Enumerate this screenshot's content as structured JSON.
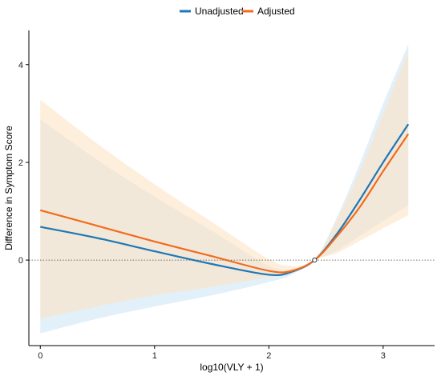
{
  "chart_data": {
    "type": "line",
    "title": "",
    "xlabel": "log10(VLY + 1)",
    "ylabel": "Difference in Symptom Score",
    "xlim": [
      -0.1,
      3.45
    ],
    "ylim": [
      -1.75,
      4.7
    ],
    "xticks": [
      0,
      1,
      2,
      3
    ],
    "yticks": [
      0,
      2,
      4
    ],
    "reference_line": {
      "y": 0,
      "style": "dotted"
    },
    "reference_point": {
      "x": 2.4,
      "y": 0
    },
    "legend": {
      "position": "top",
      "entries": [
        "Unadjusted",
        "Adjusted"
      ]
    },
    "series": [
      {
        "name": "Unadjusted",
        "color": "#1f77b4",
        "band_color": "#cfe6f6",
        "x": [
          0,
          0.5,
          1.0,
          1.5,
          2.0,
          2.2,
          2.4,
          2.6,
          2.8,
          3.0,
          3.22
        ],
        "y": [
          0.68,
          0.45,
          0.18,
          -0.08,
          -0.3,
          -0.24,
          0,
          0.55,
          1.25,
          2.0,
          2.78
        ],
        "lower": [
          -1.5,
          -1.2,
          -0.95,
          -0.72,
          -0.45,
          -0.3,
          0,
          0.2,
          0.5,
          0.8,
          1.12
        ],
        "upper": [
          2.88,
          2.05,
          1.3,
          0.6,
          -0.12,
          -0.18,
          0,
          0.9,
          2.0,
          3.2,
          4.42
        ]
      },
      {
        "name": "Adjusted",
        "color": "#f26b1d",
        "band_color": "#fde3c4",
        "x": [
          0,
          0.5,
          1.0,
          1.5,
          2.0,
          2.2,
          2.4,
          2.6,
          2.8,
          3.0,
          3.22
        ],
        "y": [
          1.02,
          0.7,
          0.38,
          0.08,
          -0.22,
          -0.22,
          0,
          0.5,
          1.1,
          1.82,
          2.58
        ],
        "lower": [
          -1.2,
          -0.95,
          -0.72,
          -0.55,
          -0.35,
          -0.28,
          0,
          0.15,
          0.4,
          0.65,
          0.92
        ],
        "upper": [
          3.28,
          2.38,
          1.55,
          0.78,
          0.02,
          -0.12,
          0,
          0.85,
          1.85,
          3.0,
          4.28
        ]
      }
    ]
  }
}
